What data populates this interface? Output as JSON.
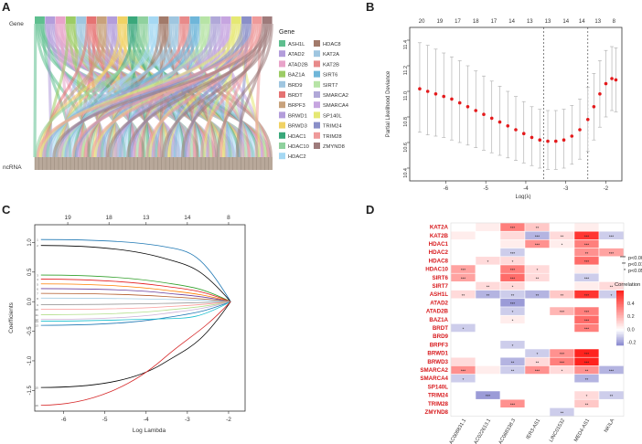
{
  "panels": {
    "a": "A",
    "b": "B",
    "c": "C",
    "d": "D"
  },
  "sankey": {
    "top_label": "Gene",
    "bottom_label": "ncRNA",
    "legend_title": "Gene",
    "genes": [
      {
        "name": "ASH1L",
        "color": "#5fbf8f"
      },
      {
        "name": "ATAD2",
        "color": "#b39ddb"
      },
      {
        "name": "ATAD2B",
        "color": "#e8a3c9"
      },
      {
        "name": "BAZ1A",
        "color": "#9ccc65"
      },
      {
        "name": "BRD9",
        "color": "#9fc6e0"
      },
      {
        "name": "BRDT",
        "color": "#e57373"
      },
      {
        "name": "BRPF3",
        "color": "#c8a27c"
      },
      {
        "name": "BRWD1",
        "color": "#b39ddb"
      },
      {
        "name": "BRWD3",
        "color": "#f0d264"
      },
      {
        "name": "HDAC1",
        "color": "#3aa87b"
      },
      {
        "name": "HDAC10",
        "color": "#8fd19e"
      },
      {
        "name": "HDAC2",
        "color": "#a5d8f3"
      },
      {
        "name": "HDAC8",
        "color": "#a27a6a"
      },
      {
        "name": "KAT2A",
        "color": "#9fc6e0"
      },
      {
        "name": "KAT2B",
        "color": "#e88a8a"
      },
      {
        "name": "SIRT6",
        "color": "#6fb6d9"
      },
      {
        "name": "SIRT7",
        "color": "#b7e4a6"
      },
      {
        "name": "SMARCA2",
        "color": "#b0a8d8"
      },
      {
        "name": "SMARCA4",
        "color": "#c6a5e0"
      },
      {
        "name": "SP140L",
        "color": "#e5e873"
      },
      {
        "name": "TRIM24",
        "color": "#8a8fc8"
      },
      {
        "name": "TRIM28",
        "color": "#ef9a9a"
      },
      {
        "name": "ZMYND8",
        "color": "#9e7b7b"
      }
    ]
  },
  "chart_data": [
    {
      "type": "scatter",
      "panel": "B",
      "ylabel": "Partial Likelihood Deviance",
      "xlabel": "Log(λ)",
      "xlim": [
        -6.9,
        -1.6
      ],
      "ylim": [
        10.3,
        11.5
      ],
      "xticks": [
        -6,
        -5,
        -4,
        -3,
        -2
      ],
      "yticks": [
        10.4,
        10.6,
        10.8,
        11.0,
        11.2,
        11.4
      ],
      "top_axis_labels": [
        "20",
        "19",
        "17",
        "18",
        "17",
        "14",
        "13",
        "13",
        "14",
        "14",
        "13",
        "8"
      ],
      "top_axis_positions": [
        -6.6,
        -6.15,
        -5.7,
        -5.25,
        -4.8,
        -4.35,
        -3.9,
        -3.45,
        -3.0,
        -2.6,
        -2.2,
        -1.8
      ],
      "vlines": [
        -3.55,
        -2.45
      ],
      "points": [
        {
          "x": -6.65,
          "y": 11.02,
          "lo": 10.68,
          "hi": 11.38
        },
        {
          "x": -6.45,
          "y": 11.0,
          "lo": 10.66,
          "hi": 11.36
        },
        {
          "x": -6.25,
          "y": 10.98,
          "lo": 10.65,
          "hi": 11.33
        },
        {
          "x": -6.05,
          "y": 10.96,
          "lo": 10.64,
          "hi": 11.3
        },
        {
          "x": -5.85,
          "y": 10.94,
          "lo": 10.62,
          "hi": 11.27
        },
        {
          "x": -5.65,
          "y": 10.91,
          "lo": 10.6,
          "hi": 11.24
        },
        {
          "x": -5.45,
          "y": 10.88,
          "lo": 10.58,
          "hi": 11.2
        },
        {
          "x": -5.25,
          "y": 10.85,
          "lo": 10.56,
          "hi": 11.16
        },
        {
          "x": -5.05,
          "y": 10.82,
          "lo": 10.54,
          "hi": 11.12
        },
        {
          "x": -4.85,
          "y": 10.79,
          "lo": 10.52,
          "hi": 11.08
        },
        {
          "x": -4.65,
          "y": 10.76,
          "lo": 10.5,
          "hi": 11.04
        },
        {
          "x": -4.45,
          "y": 10.73,
          "lo": 10.48,
          "hi": 11.0
        },
        {
          "x": -4.25,
          "y": 10.7,
          "lo": 10.46,
          "hi": 10.96
        },
        {
          "x": -4.05,
          "y": 10.67,
          "lo": 10.44,
          "hi": 10.92
        },
        {
          "x": -3.85,
          "y": 10.64,
          "lo": 10.42,
          "hi": 10.88
        },
        {
          "x": -3.65,
          "y": 10.62,
          "lo": 10.4,
          "hi": 10.86
        },
        {
          "x": -3.45,
          "y": 10.61,
          "lo": 10.39,
          "hi": 10.85
        },
        {
          "x": -3.25,
          "y": 10.61,
          "lo": 10.39,
          "hi": 10.85
        },
        {
          "x": -3.05,
          "y": 10.62,
          "lo": 10.4,
          "hi": 10.86
        },
        {
          "x": -2.85,
          "y": 10.65,
          "lo": 10.43,
          "hi": 10.89
        },
        {
          "x": -2.65,
          "y": 10.7,
          "lo": 10.47,
          "hi": 10.94
        },
        {
          "x": -2.45,
          "y": 10.78,
          "lo": 10.53,
          "hi": 11.03
        },
        {
          "x": -2.3,
          "y": 10.88,
          "lo": 10.62,
          "hi": 11.14
        },
        {
          "x": -2.15,
          "y": 10.98,
          "lo": 10.72,
          "hi": 11.24
        },
        {
          "x": -2.0,
          "y": 11.06,
          "lo": 10.8,
          "hi": 11.32
        },
        {
          "x": -1.85,
          "y": 11.1,
          "lo": 10.85,
          "hi": 11.35
        },
        {
          "x": -1.75,
          "y": 11.09,
          "lo": 10.84,
          "hi": 11.34
        }
      ]
    },
    {
      "type": "line",
      "panel": "C",
      "ylabel": "Coefficients",
      "xlabel": "Log Lambda",
      "xlim": [
        -6.7,
        -1.6
      ],
      "ylim": [
        -1.85,
        1.3
      ],
      "xticks": [
        -6,
        -5,
        -4,
        -3,
        -2
      ],
      "yticks": [
        -1.5,
        -1.0,
        -0.5,
        0.0,
        0.5,
        1.0
      ],
      "top_axis_labels": [
        "19",
        "18",
        "13",
        "14",
        "8"
      ],
      "top_axis_positions": [
        -5.9,
        -4.9,
        -4.0,
        -3.0,
        -2.0
      ],
      "series": [
        {
          "color": "#1f78b4",
          "start": 1.05,
          "mid": 1.02,
          "late": 0.85
        },
        {
          "color": "#000000",
          "start": 0.95,
          "mid": 0.88,
          "late": 0.6
        },
        {
          "color": "#33a02c",
          "start": 0.45,
          "mid": 0.4,
          "late": 0.25
        },
        {
          "color": "#e31a1c",
          "start": 0.38,
          "mid": 0.33,
          "late": 0.2
        },
        {
          "color": "#ff7f00",
          "start": 0.3,
          "mid": 0.26,
          "late": 0.14
        },
        {
          "color": "#6a3d9a",
          "start": 0.22,
          "mid": 0.2,
          "late": 0.1
        },
        {
          "color": "#b15928",
          "start": 0.14,
          "mid": 0.12,
          "late": 0.06
        },
        {
          "color": "#a6cee3",
          "start": 0.06,
          "mid": 0.05,
          "late": 0.03
        },
        {
          "color": "#999999",
          "start": -0.05,
          "mid": -0.04,
          "late": -0.02
        },
        {
          "color": "#fb9a99",
          "start": -0.13,
          "mid": -0.12,
          "late": -0.06
        },
        {
          "color": "#b2df8a",
          "start": -0.22,
          "mid": -0.2,
          "late": -0.1
        },
        {
          "color": "#cab2d6",
          "start": -0.3,
          "mid": -0.27,
          "late": -0.14
        },
        {
          "color": "#1f78b4",
          "start": -0.4,
          "mid": -0.36,
          "late": -0.2
        },
        {
          "color": "#17becf",
          "start": -0.33,
          "mid": -0.3,
          "late": -0.28
        },
        {
          "color": "#000000",
          "start": -1.45,
          "mid": -1.35,
          "late": -0.75
        },
        {
          "color": "#d62728",
          "start": -1.75,
          "mid": -1.4,
          "late": -0.55
        }
      ]
    },
    {
      "type": "heatmap",
      "panel": "D",
      "rows": [
        "KAT2A",
        "KAT2B",
        "HDAC1",
        "HDAC2",
        "HDAC8",
        "HDAC10",
        "SIRT6",
        "SIRT7",
        "ASH1L",
        "ATAD2",
        "ATAD2B",
        "BAZ1A",
        "BRDT",
        "BRD9",
        "BRPF3",
        "BRWD1",
        "BRWD3",
        "SMARCA2",
        "SMARCA4",
        "SP140L",
        "TRIM24",
        "TRIM28",
        "ZMYND8"
      ],
      "columns": [
        "AC008831.1",
        "AC022613.1",
        "AC068338.3",
        "IER3-AS1",
        "LINC01532",
        "MED4-AS1",
        "NKILA"
      ],
      "values": [
        [
          0.0,
          0.05,
          0.35,
          0.15,
          0.0,
          0.05,
          0.0
        ],
        [
          0.05,
          0.0,
          0.1,
          -0.15,
          0.1,
          0.55,
          -0.1
        ],
        [
          0.0,
          0.0,
          0.05,
          0.3,
          0.05,
          0.35,
          0.0
        ],
        [
          0.0,
          0.0,
          -0.1,
          0.0,
          0.0,
          0.3,
          0.25
        ],
        [
          0.0,
          0.1,
          0.1,
          0.0,
          0.0,
          0.4,
          0.0
        ],
        [
          0.25,
          0.0,
          0.35,
          0.1,
          0.0,
          0.05,
          0.0
        ],
        [
          0.25,
          0.0,
          0.4,
          0.1,
          0.0,
          -0.1,
          0.0
        ],
        [
          0.0,
          0.1,
          0.1,
          0.0,
          0.0,
          0.05,
          0.1
        ],
        [
          0.1,
          -0.15,
          -0.1,
          -0.15,
          0.15,
          0.55,
          -0.1
        ],
        [
          0.0,
          0.0,
          -0.2,
          0.0,
          0.0,
          0.0,
          0.0
        ],
        [
          0.0,
          0.0,
          -0.1,
          0.0,
          0.2,
          0.35,
          0.0
        ],
        [
          0.0,
          0.0,
          0.05,
          0.0,
          0.0,
          0.4,
          0.0
        ],
        [
          -0.1,
          0.0,
          0.0,
          0.0,
          0.0,
          0.35,
          0.0
        ],
        [
          0.0,
          0.0,
          0.0,
          0.0,
          0.0,
          0.0,
          0.0
        ],
        [
          0.0,
          0.0,
          -0.1,
          0.0,
          0.0,
          0.0,
          0.0
        ],
        [
          0.0,
          0.0,
          0.0,
          -0.1,
          0.3,
          0.6,
          0.0
        ],
        [
          0.1,
          0.0,
          -0.15,
          0.1,
          0.35,
          0.6,
          0.0
        ],
        [
          0.3,
          0.05,
          -0.1,
          0.3,
          0.1,
          0.3,
          -0.15
        ],
        [
          -0.1,
          0.0,
          0.0,
          0.0,
          0.0,
          -0.15,
          0.0
        ],
        [
          0.0,
          0.0,
          0.0,
          0.0,
          0.0,
          0.0,
          0.0
        ],
        [
          0.0,
          -0.2,
          0.0,
          0.0,
          0.0,
          0.1,
          -0.1
        ],
        [
          0.0,
          0.0,
          0.3,
          0.0,
          0.0,
          0.15,
          0.0
        ],
        [
          0.0,
          0.0,
          0.0,
          0.0,
          -0.1,
          0.0,
          0.0
        ]
      ],
      "stars": [
        [
          "",
          "",
          "***",
          "**",
          "",
          "",
          ""
        ],
        [
          "",
          "",
          "",
          "***",
          "**",
          "***",
          "***"
        ],
        [
          "",
          "",
          "",
          "***",
          "*",
          "***",
          ""
        ],
        [
          "",
          "",
          "***",
          "",
          "",
          "**",
          "***"
        ],
        [
          "",
          "*",
          "*",
          "",
          "",
          "***",
          ""
        ],
        [
          "***",
          "",
          "***",
          "*",
          "",
          "",
          ""
        ],
        [
          "***",
          "",
          "***",
          "**",
          "",
          "***",
          ""
        ],
        [
          "",
          "**",
          "*",
          "",
          "",
          "",
          "**"
        ],
        [
          "**",
          "**",
          "**",
          "**",
          "**",
          "***",
          "*"
        ],
        [
          "",
          "",
          "***",
          "",
          "",
          "",
          ""
        ],
        [
          "",
          "",
          "*",
          "",
          "***",
          "***",
          ""
        ],
        [
          "",
          "",
          "*",
          "",
          "",
          "***",
          ""
        ],
        [
          "*",
          "",
          "",
          "",
          "",
          "***",
          ""
        ],
        [
          "",
          "",
          "",
          "",
          "",
          "",
          ""
        ],
        [
          "",
          "",
          "*",
          "",
          "",
          "",
          ""
        ],
        [
          "",
          "",
          "",
          "*",
          "***",
          "***",
          ""
        ],
        [
          "",
          "",
          "**",
          "**",
          "***",
          "***",
          ""
        ],
        [
          "***",
          "",
          "**",
          "***",
          "*",
          "**",
          "***"
        ],
        [
          "*",
          "",
          "",
          "",
          "",
          "**",
          ""
        ],
        [
          "",
          "",
          "",
          "",
          "",
          "",
          ""
        ],
        [
          "",
          "***",
          "",
          "",
          "",
          "*",
          "**"
        ],
        [
          "",
          "",
          "***",
          "",
          "",
          "**",
          ""
        ],
        [
          "",
          "",
          "",
          "",
          "**",
          "",
          ""
        ]
      ],
      "significance_legend": [
        {
          "mark": "***",
          "label": "p<0.001"
        },
        {
          "mark": "**",
          "label": "p<0.01"
        },
        {
          "mark": "*",
          "label": "p<0.05"
        }
      ],
      "colorbar_title": "Correlation",
      "colorbar_ticks": [
        0.4,
        0.2,
        0.0,
        -0.2
      ],
      "colorbar_range": [
        -0.25,
        0.6
      ]
    }
  ]
}
